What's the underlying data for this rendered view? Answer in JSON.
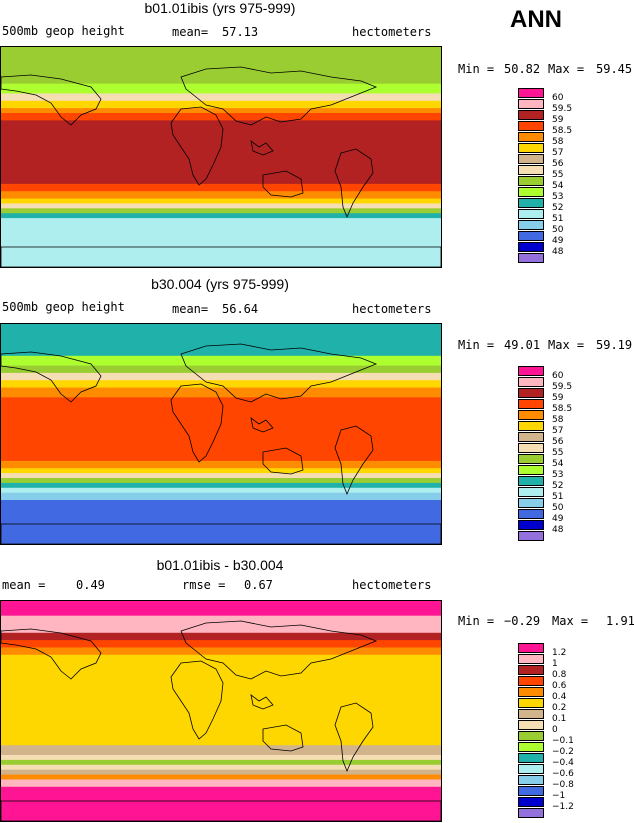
{
  "season": "ANN",
  "chart_data": [
    {
      "type": "heatmap",
      "title": "b01.01ibis (yrs 975-999)",
      "left_label": "500mb geop height",
      "mean_label": "mean=",
      "mean_value": "57.13",
      "units": "hectometers",
      "min_label": "Min =",
      "min_value": "50.82",
      "max_label": "Max =",
      "max_value": "59.45",
      "levels": [
        "60",
        "59.5",
        "59",
        "58.5",
        "58",
        "57",
        "56",
        "55",
        "54",
        "53",
        "52",
        "51",
        "50",
        "49",
        "48"
      ],
      "level_colors": [
        "#ff1493",
        "#ffb6c1",
        "#b22222",
        "#ff4500",
        "#ff8c00",
        "#ffd700",
        "#d2b48c",
        "#f5deb3",
        "#9acd32",
        "#adff2f",
        "#20b2aa",
        "#afeeee",
        "#87ceeb",
        "#4169e1",
        "#0000cd",
        "#9370db"
      ],
      "bands": [
        {
          "lat_top": 90,
          "lat_bottom": 60,
          "color": "#9acd32"
        },
        {
          "lat_top": 60,
          "lat_bottom": 52,
          "color": "#adff2f"
        },
        {
          "lat_top": 52,
          "lat_bottom": 46,
          "color": "#f5deb3"
        },
        {
          "lat_top": 46,
          "lat_bottom": 40,
          "color": "#ffd700"
        },
        {
          "lat_top": 40,
          "lat_bottom": 36,
          "color": "#ff8c00"
        },
        {
          "lat_top": 36,
          "lat_bottom": 30,
          "color": "#ff4500"
        },
        {
          "lat_top": 30,
          "lat_bottom": -22,
          "color": "#b22222"
        },
        {
          "lat_top": -22,
          "lat_bottom": -28,
          "color": "#ff4500"
        },
        {
          "lat_top": -28,
          "lat_bottom": -34,
          "color": "#ff8c00"
        },
        {
          "lat_top": -34,
          "lat_bottom": -38,
          "color": "#ffd700"
        },
        {
          "lat_top": -38,
          "lat_bottom": -42,
          "color": "#f5deb3"
        },
        {
          "lat_top": -42,
          "lat_bottom": -46,
          "color": "#9acd32"
        },
        {
          "lat_top": -46,
          "lat_bottom": -50,
          "color": "#20b2aa"
        },
        {
          "lat_top": -50,
          "lat_bottom": -90,
          "color": "#afeeee"
        }
      ]
    },
    {
      "type": "heatmap",
      "title": "b30.004 (yrs 975-999)",
      "left_label": "500mb geop height",
      "mean_label": "mean=",
      "mean_value": "56.64",
      "units": "hectometers",
      "min_label": "Min =",
      "min_value": "49.01",
      "max_label": "Max =",
      "max_value": "59.19",
      "levels": [
        "60",
        "59.5",
        "59",
        "58.5",
        "58",
        "57",
        "56",
        "55",
        "54",
        "53",
        "52",
        "51",
        "50",
        "49",
        "48"
      ],
      "level_colors": [
        "#ff1493",
        "#ffb6c1",
        "#b22222",
        "#ff4500",
        "#ff8c00",
        "#ffd700",
        "#d2b48c",
        "#f5deb3",
        "#9acd32",
        "#adff2f",
        "#20b2aa",
        "#afeeee",
        "#87ceeb",
        "#4169e1",
        "#0000cd",
        "#9370db"
      ],
      "bands": [
        {
          "lat_top": 90,
          "lat_bottom": 64,
          "color": "#20b2aa"
        },
        {
          "lat_top": 64,
          "lat_bottom": 56,
          "color": "#adff2f"
        },
        {
          "lat_top": 56,
          "lat_bottom": 50,
          "color": "#9acd32"
        },
        {
          "lat_top": 50,
          "lat_bottom": 44,
          "color": "#f5deb3"
        },
        {
          "lat_top": 44,
          "lat_bottom": 38,
          "color": "#ffd700"
        },
        {
          "lat_top": 38,
          "lat_bottom": 30,
          "color": "#ff8c00"
        },
        {
          "lat_top": 30,
          "lat_bottom": -22,
          "color": "#ff4500"
        },
        {
          "lat_top": -22,
          "lat_bottom": -28,
          "color": "#ff8c00"
        },
        {
          "lat_top": -28,
          "lat_bottom": -32,
          "color": "#ffd700"
        },
        {
          "lat_top": -32,
          "lat_bottom": -36,
          "color": "#f5deb3"
        },
        {
          "lat_top": -36,
          "lat_bottom": -40,
          "color": "#9acd32"
        },
        {
          "lat_top": -40,
          "lat_bottom": -44,
          "color": "#20b2aa"
        },
        {
          "lat_top": -44,
          "lat_bottom": -48,
          "color": "#afeeee"
        },
        {
          "lat_top": -48,
          "lat_bottom": -54,
          "color": "#87ceeb"
        },
        {
          "lat_top": -54,
          "lat_bottom": -90,
          "color": "#4169e1"
        }
      ]
    },
    {
      "type": "heatmap",
      "title": "b01.01ibis - b30.004",
      "left_label": "mean =",
      "left_value": "0.49",
      "mean_label": "rmse =",
      "mean_value": "0.67",
      "units": "hectometers",
      "min_label": "Min =",
      "min_value": "−0.29",
      "max_label": "Max =",
      "max_value": "1.91",
      "levels": [
        "1.2",
        "1",
        "0.8",
        "0.6",
        "0.4",
        "0.2",
        "0.1",
        "0",
        "−0.1",
        "−0.2",
        "−0.4",
        "−0.6",
        "−0.8",
        "−1",
        "−1.2"
      ],
      "level_colors": [
        "#ff1493",
        "#ffb6c1",
        "#b22222",
        "#ff4500",
        "#ff8c00",
        "#ffd700",
        "#d2b48c",
        "#f5deb3",
        "#9acd32",
        "#adff2f",
        "#20b2aa",
        "#afeeee",
        "#87ceeb",
        "#4169e1",
        "#0000cd",
        "#9370db"
      ],
      "bands": [
        {
          "lat_top": 90,
          "lat_bottom": 78,
          "color": "#ff1493"
        },
        {
          "lat_top": 78,
          "lat_bottom": 64,
          "color": "#ffb6c1"
        },
        {
          "lat_top": 64,
          "lat_bottom": 58,
          "color": "#b22222"
        },
        {
          "lat_top": 58,
          "lat_bottom": 52,
          "color": "#ff4500"
        },
        {
          "lat_top": 52,
          "lat_bottom": 46,
          "color": "#ff8c00"
        },
        {
          "lat_top": 46,
          "lat_bottom": -28,
          "color": "#ffd700"
        },
        {
          "lat_top": -28,
          "lat_bottom": -36,
          "color": "#d2b48c"
        },
        {
          "lat_top": -36,
          "lat_bottom": -40,
          "color": "#f5deb3"
        },
        {
          "lat_top": -40,
          "lat_bottom": -44,
          "color": "#9acd32"
        },
        {
          "lat_top": -44,
          "lat_bottom": -48,
          "color": "#f5deb3"
        },
        {
          "lat_top": -48,
          "lat_bottom": -52,
          "color": "#d2b48c"
        },
        {
          "lat_top": -52,
          "lat_bottom": -56,
          "color": "#ff8c00"
        },
        {
          "lat_top": -56,
          "lat_bottom": -62,
          "color": "#ffb6c1"
        },
        {
          "lat_top": -62,
          "lat_bottom": -90,
          "color": "#ff1493"
        }
      ]
    }
  ]
}
